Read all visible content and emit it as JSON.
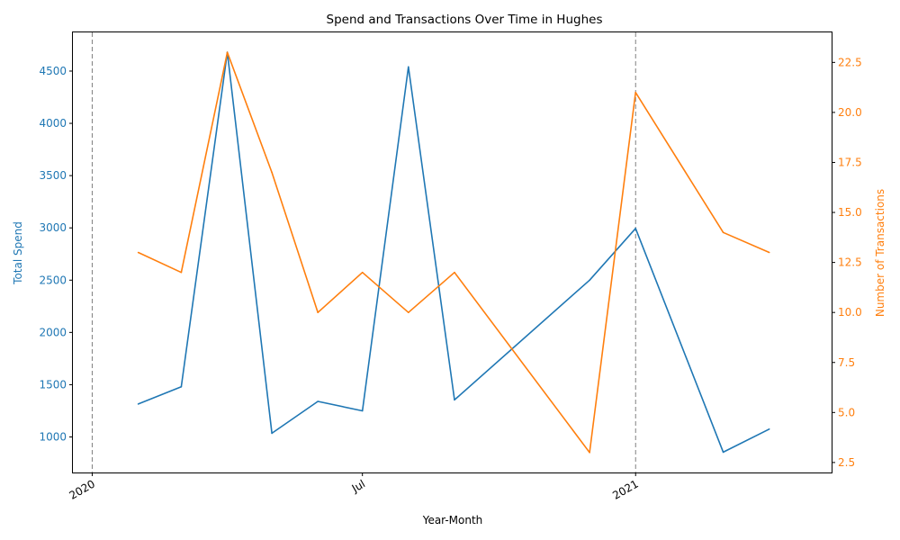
{
  "chart_data": {
    "type": "line",
    "title": "Spend and Transactions Over Time in Hughes",
    "xlabel": "Year-Month",
    "ylabel_left": "Total Spend",
    "ylabel_right": "Number of Transactions",
    "x": [
      "2020-02",
      "2020-03",
      "2020-04",
      "2020-05",
      "2020-06",
      "2020-07",
      "2020-08",
      "2020-09",
      "2020-12",
      "2021-01",
      "2021-03",
      "2021-04"
    ],
    "x_ticks": [
      {
        "date": "2020-01",
        "label": "2020",
        "vline": true
      },
      {
        "date": "2020-07",
        "label": "Jul",
        "vline": false
      },
      {
        "date": "2021-01",
        "label": "2021",
        "vline": true
      }
    ],
    "x_range": [
      "2019-12-19",
      "2021-05-13"
    ],
    "series": [
      {
        "key": "spend",
        "axis": "left",
        "color": "#1f77b4",
        "values": [
          1315,
          1480,
          4680,
          1035,
          1340,
          1250,
          4540,
          1355,
          2500,
          2995,
          855,
          1075
        ]
      },
      {
        "key": "transactions",
        "axis": "right",
        "color": "#ff7f0e",
        "values": [
          13,
          12,
          23,
          17,
          10,
          12,
          10,
          12,
          3,
          21,
          14,
          13
        ]
      }
    ],
    "ylim_left": [
      660,
      4870
    ],
    "ylim_right": [
      2.0,
      24.0
    ],
    "yticks_left": [
      1000,
      1500,
      2000,
      2500,
      3000,
      3500,
      4000,
      4500
    ],
    "yticks_right": [
      2.5,
      5.0,
      7.5,
      10.0,
      12.5,
      15.0,
      17.5,
      20.0,
      22.5
    ],
    "yticks_right_labels": [
      "2.5",
      "5.0",
      "7.5",
      "10.0",
      "12.5",
      "15.0",
      "17.5",
      "20.0",
      "22.5"
    ],
    "grid": false,
    "left_color": "#1f77b4",
    "right_color": "#ff7f0e",
    "vline_color": "#808080"
  }
}
